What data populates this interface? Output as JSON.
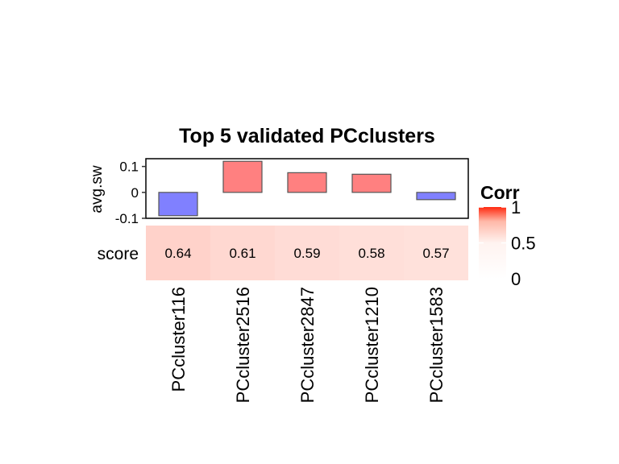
{
  "chart_data": {
    "type": "bar",
    "title": "Top 5 validated PCclusters",
    "categories": [
      "PCcluster116",
      "PCcluster2516",
      "PCcluster2847",
      "PCcluster1210",
      "PCcluster1583"
    ],
    "bar_panel": {
      "ylabel": "avg.sw",
      "ylim": [
        -0.1,
        0.13
      ],
      "yticks": [
        0.1,
        0,
        -0.1
      ],
      "ytick_labels": [
        "0.1",
        "0",
        "-0.1"
      ],
      "values": [
        -0.09,
        0.12,
        0.076,
        0.07,
        -0.028
      ],
      "positive_color": "#ff8080",
      "negative_color": "#8080ff"
    },
    "heatmap_panel": {
      "row_label": "score",
      "values": [
        0.64,
        0.61,
        0.59,
        0.58,
        0.57
      ],
      "value_labels": [
        "0.64",
        "0.61",
        "0.59",
        "0.58",
        "0.57"
      ]
    },
    "legend": {
      "title": "Corr",
      "position": "right",
      "range": [
        0,
        1
      ],
      "ticks": [
        1,
        0.5,
        0
      ],
      "tick_labels": [
        "1",
        "0.5",
        "0"
      ],
      "colors": {
        "low": "#ffffff",
        "mid": "#fff0ed",
        "high": "#ff2a10"
      }
    }
  }
}
